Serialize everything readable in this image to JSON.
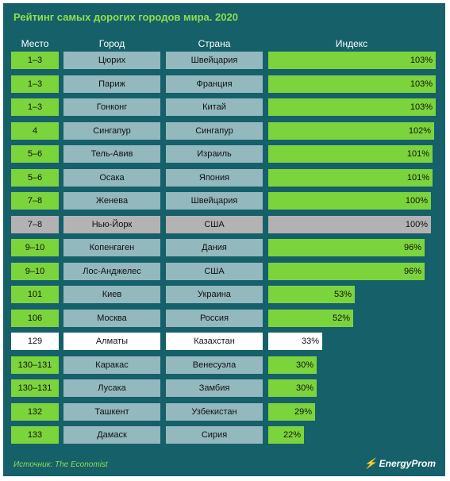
{
  "title": "Рейтинг самых дорогих городов мира. 2020",
  "headers": {
    "rank": "Место",
    "city": "Город",
    "country": "Страна",
    "index": "Индекс"
  },
  "chart_data": {
    "type": "bar",
    "title": "Рейтинг самых дорогих городов мира. 2020",
    "series": [
      {
        "values": [
          103,
          103,
          103,
          102,
          101,
          101,
          100,
          100,
          96,
          96,
          53,
          52,
          33,
          30,
          30,
          29,
          22
        ]
      }
    ],
    "rows": [
      {
        "rank": "1–3",
        "city": "Цюрих",
        "country": "Швейцария",
        "value": 103,
        "label": "103%",
        "style": "normal"
      },
      {
        "rank": "1–3",
        "city": "Париж",
        "country": "Франция",
        "value": 103,
        "label": "103%",
        "style": "normal"
      },
      {
        "rank": "1–3",
        "city": "Гонконг",
        "country": "Китай",
        "value": 103,
        "label": "103%",
        "style": "normal"
      },
      {
        "rank": "4",
        "city": "Сингапур",
        "country": "Сингапур",
        "value": 102,
        "label": "102%",
        "style": "normal"
      },
      {
        "rank": "5–6",
        "city": "Тель-Авив",
        "country": "Израиль",
        "value": 101,
        "label": "101%",
        "style": "normal"
      },
      {
        "rank": "5–6",
        "city": "Осака",
        "country": "Япония",
        "value": 101,
        "label": "101%",
        "style": "normal"
      },
      {
        "rank": "7–8",
        "city": "Женева",
        "country": "Швейцария",
        "value": 100,
        "label": "100%",
        "style": "normal"
      },
      {
        "rank": "7–8",
        "city": "Нью-Йорк",
        "country": "США",
        "value": 100,
        "label": "100%",
        "style": "gray"
      },
      {
        "rank": "9–10",
        "city": "Копенгаген",
        "country": "Дания",
        "value": 96,
        "label": "96%",
        "style": "normal"
      },
      {
        "rank": "9–10",
        "city": "Лос-Анджелес",
        "country": "США",
        "value": 96,
        "label": "96%",
        "style": "normal"
      },
      {
        "rank": "101",
        "city": "Киев",
        "country": "Украина",
        "value": 53,
        "label": "53%",
        "style": "normal"
      },
      {
        "rank": "106",
        "city": "Москва",
        "country": "Россия",
        "value": 52,
        "label": "52%",
        "style": "normal"
      },
      {
        "rank": "129",
        "city": "Алматы",
        "country": "Казахстан",
        "value": 33,
        "label": "33%",
        "style": "highlight"
      },
      {
        "rank": "130–131",
        "city": "Каракас",
        "country": "Венесуэла",
        "value": 30,
        "label": "30%",
        "style": "normal"
      },
      {
        "rank": "130–131",
        "city": "Лусака",
        "country": "Замбия",
        "value": 30,
        "label": "30%",
        "style": "normal"
      },
      {
        "rank": "132",
        "city": "Ташкент",
        "country": "Узбекистан",
        "value": 29,
        "label": "29%",
        "style": "normal"
      },
      {
        "rank": "133",
        "city": "Дамаск",
        "country": "Сирия",
        "value": 22,
        "label": "22%",
        "style": "normal"
      }
    ]
  },
  "source": "Источник: The Economist",
  "brand": "EnergyProm",
  "colors": {
    "background": "#16606a",
    "bar": "#7cd43c",
    "cell": "#93b8be",
    "highlight": "#ffffff",
    "gray": "#b2b2b2",
    "title": "#8ee04a"
  }
}
